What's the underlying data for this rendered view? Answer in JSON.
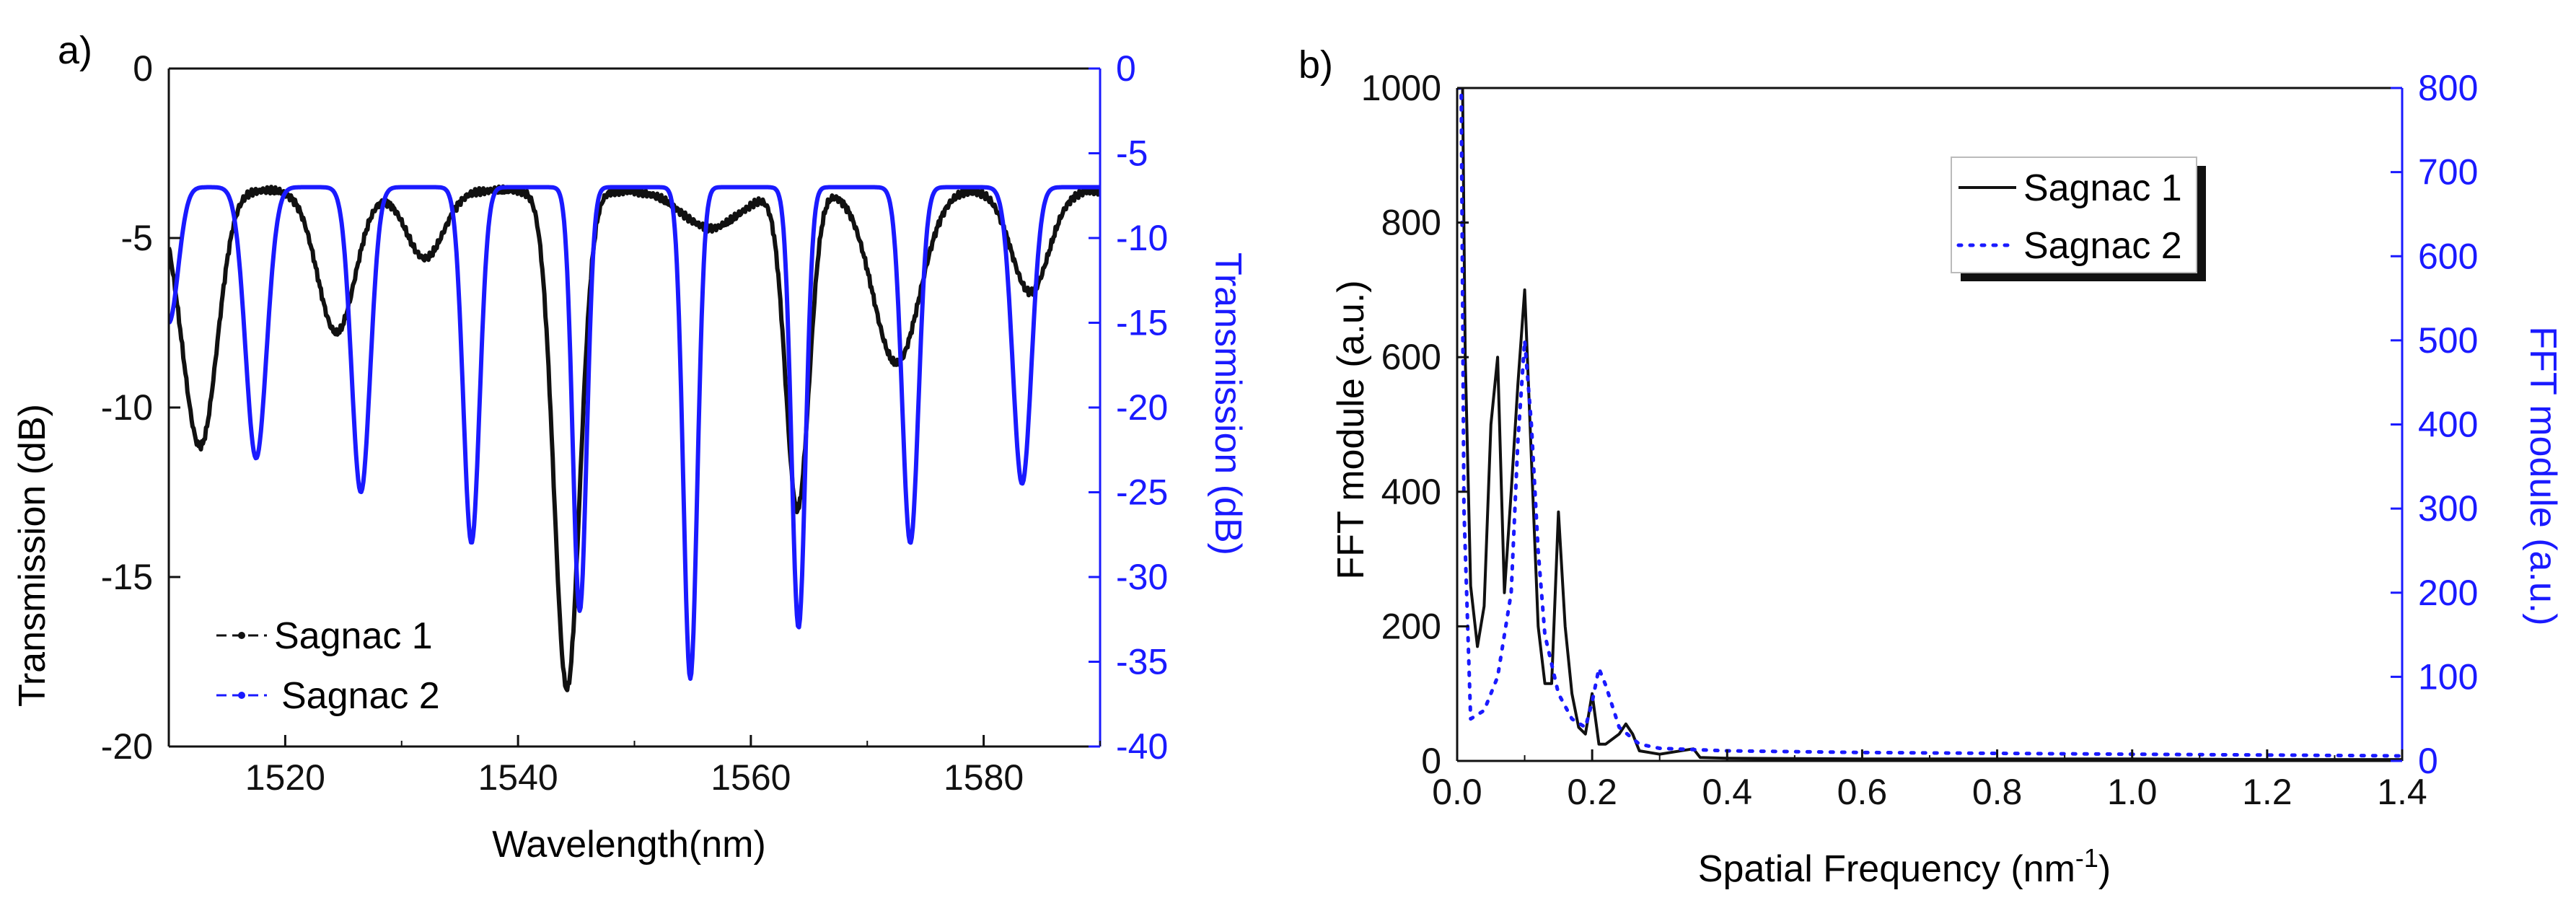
{
  "colors": {
    "black": "#111111",
    "blue": "#1a1aff"
  },
  "chart_data": [
    {
      "panel": "a)",
      "type": "line",
      "xlabel": "Wavelength(nm)",
      "ylabel": "Transmission (dB)",
      "y2label": "Transmission (dB)",
      "xlim": [
        1510,
        1590
      ],
      "ylim": [
        -20,
        0
      ],
      "y2lim": [
        -40,
        0
      ],
      "x_ticks": [
        "1520",
        "1540",
        "1560",
        "1580"
      ],
      "y_ticks": [
        "0",
        "-5",
        "-10",
        "-15",
        "-20"
      ],
      "y2_ticks": [
        "0",
        "-5",
        "-10",
        "-15",
        "-20",
        "-25",
        "-30",
        "-35",
        "-40"
      ],
      "legend_position": "bottom-left",
      "series": [
        {
          "name": "Sagnac 1",
          "axis": "left",
          "color": "#111111",
          "baseline": -3.6,
          "dips": [
            [
              1511,
              -4.6,
              1.2
            ],
            [
              1512.8,
              -10.8,
              1.4
            ],
            [
              1524.4,
              -7.8,
              1.6
            ],
            [
              1532,
              -5.6,
              1.6
            ],
            [
              1544.2,
              -18.3,
              1.1
            ],
            [
              1556.6,
              -4.7,
              2.5
            ],
            [
              1564,
              -13.0,
              1.0
            ],
            [
              1572.5,
              -8.7,
              2.0
            ],
            [
              1584,
              -6.6,
              1.6
            ]
          ]
        },
        {
          "name": "Sagnac 2",
          "axis": "right",
          "color": "#1a1aff",
          "baseline": -7.0,
          "dips": [
            [
              1510,
              -15.0,
              0.8
            ],
            [
              1517.5,
              -23.0,
              0.9
            ],
            [
              1526.5,
              -25.0,
              0.8
            ],
            [
              1536,
              -28.0,
              0.7
            ],
            [
              1545.3,
              -32.0,
              0.6
            ],
            [
              1554.8,
              -36.0,
              0.6
            ],
            [
              1564.1,
              -33.0,
              0.6
            ],
            [
              1573.7,
              -28.0,
              0.7
            ],
            [
              1583.3,
              -24.5,
              0.8
            ]
          ]
        }
      ]
    },
    {
      "panel": "b)",
      "type": "line",
      "xlabel": "Spatial Frequency (nm",
      "xlabel_sup": "-1",
      "xlabel_end": ")",
      "ylabel": "FFT module (a.u.)",
      "y2label": "FFT module (a.u.)",
      "xlim": [
        0,
        1.4
      ],
      "ylim": [
        0,
        1000
      ],
      "y2lim": [
        0,
        800
      ],
      "x_ticks": [
        "0.0",
        "0.2",
        "0.4",
        "0.6",
        "0.8",
        "1.0",
        "1.2",
        "1.4"
      ],
      "y_ticks": [
        "0",
        "200",
        "400",
        "600",
        "800",
        "1000"
      ],
      "y2_ticks": [
        "0",
        "100",
        "200",
        "300",
        "400",
        "500",
        "600",
        "700",
        "800"
      ],
      "legend_position": "top-right",
      "series": [
        {
          "name": "Sagnac 1",
          "axis": "left",
          "color": "#111111",
          "points": [
            [
              0.0,
              1000
            ],
            [
              0.008,
              1000
            ],
            [
              0.012,
              600
            ],
            [
              0.02,
              260
            ],
            [
              0.03,
              170
            ],
            [
              0.04,
              230
            ],
            [
              0.05,
              500
            ],
            [
              0.06,
              600
            ],
            [
              0.07,
              250
            ],
            [
              0.08,
              400
            ],
            [
              0.09,
              560
            ],
            [
              0.1,
              700
            ],
            [
              0.11,
              450
            ],
            [
              0.12,
              200
            ],
            [
              0.13,
              115
            ],
            [
              0.14,
              115
            ],
            [
              0.15,
              370
            ],
            [
              0.16,
              200
            ],
            [
              0.17,
              100
            ],
            [
              0.18,
              50
            ],
            [
              0.19,
              40
            ],
            [
              0.2,
              100
            ],
            [
              0.21,
              25
            ],
            [
              0.22,
              25
            ],
            [
              0.24,
              40
            ],
            [
              0.25,
              55
            ],
            [
              0.26,
              40
            ],
            [
              0.27,
              15
            ],
            [
              0.3,
              10
            ],
            [
              0.35,
              18
            ],
            [
              0.36,
              5
            ],
            [
              0.4,
              4
            ],
            [
              0.6,
              3
            ],
            [
              0.8,
              3
            ],
            [
              1.0,
              3
            ],
            [
              1.2,
              2
            ],
            [
              1.4,
              2
            ]
          ]
        },
        {
          "name": "Sagnac 2",
          "axis": "right",
          "color": "#1a1aff",
          "points": [
            [
              0.0,
              800
            ],
            [
              0.006,
              800
            ],
            [
              0.01,
              300
            ],
            [
              0.02,
              50
            ],
            [
              0.04,
              60
            ],
            [
              0.06,
              100
            ],
            [
              0.08,
              200
            ],
            [
              0.09,
              380
            ],
            [
              0.1,
              500
            ],
            [
              0.11,
              400
            ],
            [
              0.12,
              250
            ],
            [
              0.13,
              150
            ],
            [
              0.15,
              80
            ],
            [
              0.17,
              50
            ],
            [
              0.19,
              40
            ],
            [
              0.2,
              70
            ],
            [
              0.21,
              110
            ],
            [
              0.22,
              90
            ],
            [
              0.24,
              40
            ],
            [
              0.27,
              20
            ],
            [
              0.3,
              15
            ],
            [
              0.4,
              12
            ],
            [
              0.6,
              10
            ],
            [
              0.8,
              9
            ],
            [
              1.0,
              8
            ],
            [
              1.2,
              7
            ],
            [
              1.4,
              6
            ]
          ]
        }
      ]
    }
  ]
}
